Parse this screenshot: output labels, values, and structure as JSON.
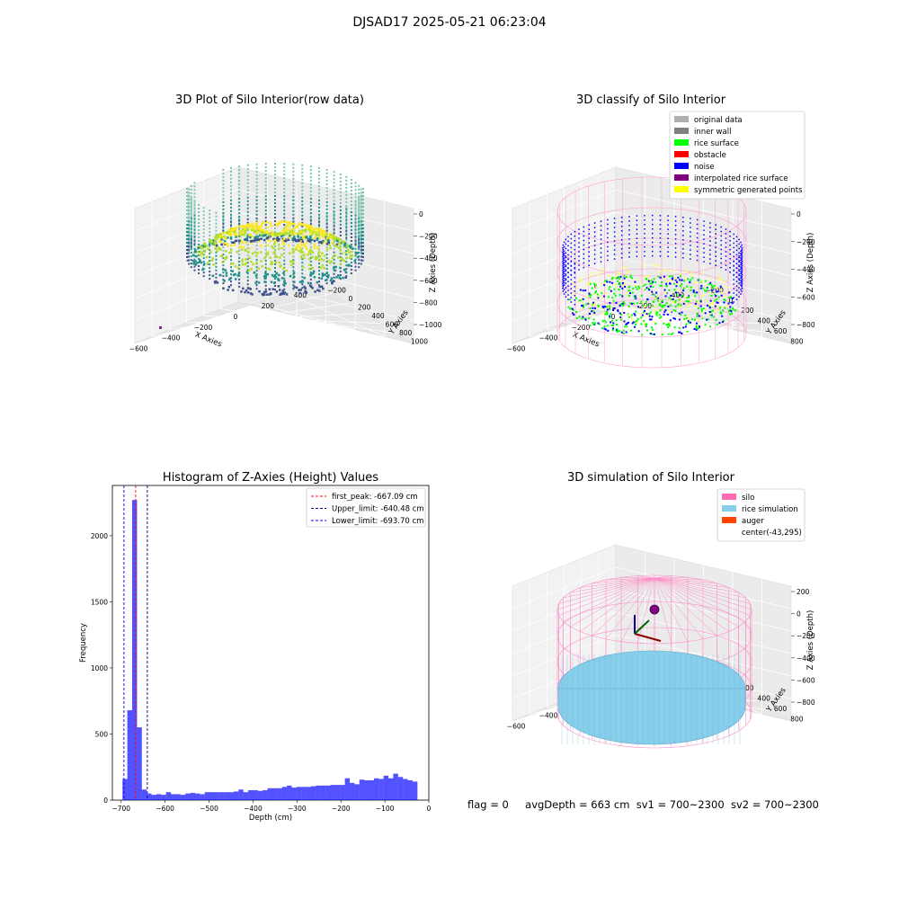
{
  "figure": {
    "suptitle": "DJSAD17 2025-05-21 06:23:04",
    "status": {
      "flag": "flag = 0",
      "avg_depth": "avgDepth = 663 cm",
      "sv1": "sv1 = 700~2300",
      "sv2": "sv2 = 700~2300"
    }
  },
  "chart_data": [
    {
      "type": "scatter",
      "title": "3D Plot of Silo Interior(row data)",
      "xlabel": "X Axies",
      "ylabel": "Y Axies",
      "zlabel": "Z Axies (Depth)",
      "x_ticks": [
        "−600",
        "−400",
        "−200",
        "0",
        "200",
        "400"
      ],
      "y_ticks": [
        "−200",
        "0",
        "200",
        "400",
        "600",
        "800",
        "1000"
      ],
      "z_ticks": [
        "0",
        "−200",
        "−400",
        "−600",
        "−800",
        "−1000"
      ],
      "colormap": "viridis",
      "colors": {
        "low": "#3b528b",
        "mid": "#21918c",
        "high": "#fde725"
      }
    },
    {
      "type": "scatter",
      "title": "3D classify of Silo Interior",
      "xlabel": "X Axies",
      "ylabel": "Y Axies",
      "zlabel": "Z Axies (Depth)",
      "x_ticks": [
        "−600",
        "−400",
        "−200",
        "0",
        "200",
        "400"
      ],
      "y_ticks": [
        "−200",
        "0",
        "200",
        "400",
        "600",
        "800"
      ],
      "z_ticks": [
        "0",
        "−200",
        "−400",
        "−600",
        "−800"
      ],
      "legend": [
        {
          "label": "original data",
          "color": "#b0b0b0"
        },
        {
          "label": "inner wall",
          "color": "#808080"
        },
        {
          "label": "rice surface",
          "color": "#00ff00"
        },
        {
          "label": "obstacle",
          "color": "#ff0000"
        },
        {
          "label": "noise",
          "color": "#0000ff"
        },
        {
          "label": "interpolated rice surface",
          "color": "#800080"
        },
        {
          "label": "symmetric generated points",
          "color": "#ffff00"
        }
      ],
      "legend_position": "top-right"
    },
    {
      "type": "bar",
      "title": "Histogram of Z-Axies (Height) Values",
      "xlabel": "Depth (cm)",
      "ylabel": "Frequency",
      "xlim": [
        -720,
        0
      ],
      "ylim": [
        0,
        2380
      ],
      "x_ticks": [
        "−700",
        "−600",
        "−500",
        "−400",
        "−300",
        "−200",
        "−100",
        "0"
      ],
      "y_ticks": [
        "0",
        "500",
        "1000",
        "1500",
        "2000"
      ],
      "bin_width": 11.1,
      "bin_starts": [
        -697,
        -686,
        -675,
        -664,
        -653,
        -642,
        -631,
        -620,
        -609,
        -598,
        -587,
        -576,
        -565,
        -554,
        -543,
        -532,
        -521,
        -510,
        -499,
        -488,
        -477,
        -466,
        -455,
        -444,
        -433,
        -422,
        -411,
        -400,
        -389,
        -378,
        -367,
        -356,
        -345,
        -334,
        -323,
        -312,
        -301,
        -290,
        -279,
        -268,
        -257,
        -246,
        -235,
        -224,
        -213,
        -202,
        -191,
        -180,
        -169,
        -158,
        -147,
        -136,
        -125,
        -114,
        -103,
        -92,
        -81,
        -70,
        -59,
        -48,
        -37
      ],
      "values": [
        160,
        680,
        2270,
        550,
        80,
        50,
        40,
        45,
        40,
        60,
        45,
        45,
        40,
        50,
        55,
        50,
        45,
        60,
        60,
        60,
        60,
        60,
        60,
        65,
        80,
        60,
        75,
        75,
        70,
        75,
        90,
        90,
        90,
        100,
        110,
        95,
        100,
        100,
        100,
        105,
        110,
        110,
        110,
        115,
        115,
        115,
        165,
        130,
        120,
        155,
        150,
        150,
        165,
        160,
        185,
        165,
        200,
        175,
        160,
        150,
        140
      ],
      "bar_color": "#0000ff",
      "vlines": [
        {
          "label": "first_peak: -667.09 cm",
          "x": -667.09,
          "color": "#ff0000"
        },
        {
          "label": "Upper_limit: -640.48 cm",
          "x": -640.48,
          "color": "#000080"
        },
        {
          "label": "Lower_limit: -693.70 cm",
          "x": -693.7,
          "color": "#0000ff"
        }
      ],
      "legend_position": "top-right"
    },
    {
      "type": "scatter",
      "title": "3D simulation of Silo Interior",
      "xlabel": "X Axies",
      "ylabel": "Y Axies",
      "zlabel": "Z Axies (Depth)",
      "x_ticks": [
        "−600",
        "−400",
        "−200",
        "0",
        "200",
        "400"
      ],
      "y_ticks": [
        "−200",
        "0",
        "200",
        "400",
        "600",
        "800"
      ],
      "z_ticks": [
        "200",
        "0",
        "−200",
        "−400",
        "−600",
        "−800"
      ],
      "legend": [
        {
          "label": "silo",
          "color": "#ff69b4"
        },
        {
          "label": "rice simulation",
          "color": "#87ceeb"
        },
        {
          "label": "auger",
          "color": "#ff4500"
        },
        {
          "label": "center(-43,295)",
          "color": "#ffffff"
        }
      ],
      "legend_position": "top-right"
    }
  ]
}
